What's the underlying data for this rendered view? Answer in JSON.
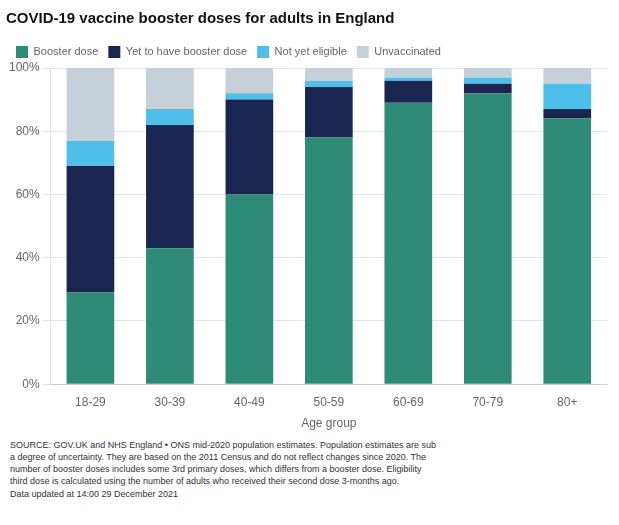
{
  "chart_data": {
    "type": "bar",
    "title": "COVID-19 vaccine booster doses for adults in England",
    "x_label": "Age group",
    "categories": [
      "18-29",
      "30-39",
      "40-49",
      "50-59",
      "60-69",
      "70-79",
      "80+"
    ],
    "series": [
      {
        "name": "Booster dose",
        "color": "#2e8b75",
        "values": [
          29,
          43,
          60,
          78,
          89,
          92,
          84
        ]
      },
      {
        "name": "Yet to have booster dose",
        "color": "#1a2550",
        "values": [
          40,
          39,
          30,
          16,
          7,
          3,
          3
        ]
      },
      {
        "name": "Not yet eligible",
        "color": "#4dbfe8",
        "values": [
          8,
          5,
          2,
          2,
          1,
          2,
          8
        ]
      },
      {
        "name": "Unvaccinated",
        "color": "#c5d0d8",
        "values": [
          23,
          13,
          8,
          4,
          3,
          3,
          5
        ]
      }
    ],
    "stacked": true,
    "ylim": [
      0,
      100
    ],
    "yticks": [
      {
        "value": 0,
        "label": "0%"
      },
      {
        "value": 20,
        "label": "20%"
      },
      {
        "value": 40,
        "label": "40%"
      },
      {
        "value": 60,
        "label": "60%"
      },
      {
        "value": 80,
        "label": "80%"
      },
      {
        "value": 100,
        "label": "100%"
      }
    ],
    "grid": true,
    "legend": "top",
    "annotations": [
      "SOURCE: GOV.UK and NHS England • ONS mid-2020 population estimates. Population estimates are sub",
      "a degree of uncertainty. They are based on the 2011 Census and do not reflect changes since 2020. The",
      "number of booster doses includes some 3rd primary doses, which differs from a booster dose. Eligibility",
      "third dose is calculated using the number of adults who received their second dose 3-months ago.",
      "Data updated at 14:00 29 December 2021"
    ]
  }
}
